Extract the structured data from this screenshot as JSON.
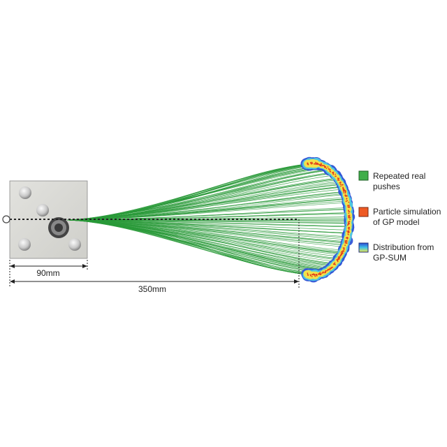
{
  "dimensions": {
    "short": "90mm",
    "long": "350mm"
  },
  "legend": [
    {
      "label_lines": [
        "Repeated real",
        "pushes"
      ],
      "swatch": "solid",
      "color": "#3fae49"
    },
    {
      "label_lines": [
        "Particle simulation",
        "of GP model"
      ],
      "swatch": "solid",
      "color": "#ee5a24"
    },
    {
      "label_lines": [
        "Distribution from",
        "GP-SUM"
      ],
      "swatch": "gradient",
      "colors": [
        "#2b4bd6",
        "#3fc3e6",
        "#f4e84b"
      ]
    }
  ],
  "colors": {
    "pushes": "#2a9a3a",
    "particles": "#e23b1a",
    "distribution_outer": "#3355d6",
    "distribution_mid": "#4ec7e0",
    "distribution_inner": "#f2e14a",
    "photo_bg": "#d9d9d5"
  },
  "figure_content": {
    "push_fan_count": 120,
    "photo_object": "square plate with four round posts and a central ring",
    "pusher_marker": "circle on dotted line"
  }
}
